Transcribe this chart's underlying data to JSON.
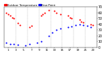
{
  "legend_temp_label": "Outdoor Temperature",
  "legend_dew_label": "Dew Point",
  "temp_color": "#ff0000",
  "dew_color": "#0000ff",
  "background_color": "#ffffff",
  "xlim": [
    0,
    24
  ],
  "ylim": [
    0,
    70
  ],
  "ytick_values": [
    0,
    10,
    20,
    30,
    40,
    50,
    60,
    70
  ],
  "ytick_labels": [
    "0",
    "10",
    "20",
    "30",
    "40",
    "50",
    "60",
    "70"
  ],
  "xtick_values": [
    1,
    3,
    5,
    7,
    9,
    11,
    13,
    15,
    17,
    19,
    21,
    23
  ],
  "temp_x": [
    0.5,
    1.0,
    1.5,
    2.0,
    2.5,
    3.5,
    4.0,
    6.5,
    7.0,
    9.5,
    10.0,
    10.5,
    11.5,
    13.0,
    13.5,
    14.5,
    16.5,
    17.0,
    17.5,
    19.5,
    20.0,
    20.5,
    22.5,
    23.0
  ],
  "temp_y": [
    60,
    57,
    55,
    52,
    50,
    42,
    38,
    35,
    37,
    55,
    58,
    60,
    65,
    63,
    60,
    58,
    55,
    52,
    50,
    48,
    45,
    43,
    40,
    38
  ],
  "dew_x": [
    0.5,
    1.5,
    2.5,
    3.5,
    5.5,
    6.5,
    8.5,
    9.5,
    11.5,
    12.5,
    13.5,
    14.5,
    16.5,
    17.5,
    18.5,
    19.5,
    20.5,
    21.5,
    22.5
  ],
  "dew_y": [
    8,
    6,
    5,
    4,
    3,
    5,
    8,
    10,
    20,
    25,
    30,
    33,
    35,
    36,
    38,
    40,
    38,
    37,
    35
  ],
  "vline_positions": [
    3,
    6,
    9,
    12,
    15,
    18,
    21
  ],
  "vline_color": "#aaaaaa",
  "marker_size": 2.5,
  "ytick_fontsize": 3.5,
  "xtick_fontsize": 3.0,
  "legend_fontsize": 3.0
}
